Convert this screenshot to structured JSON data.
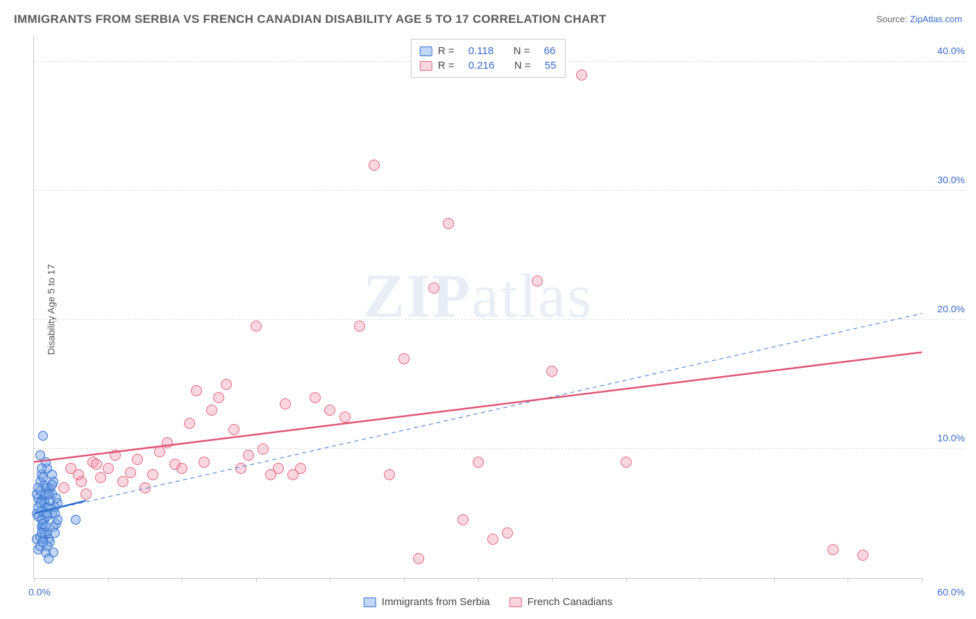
{
  "title": "IMMIGRANTS FROM SERBIA VS FRENCH CANADIAN DISABILITY AGE 5 TO 17 CORRELATION CHART",
  "source_prefix": "Source: ",
  "source_name": "ZipAtlas.com",
  "ylabel": "Disability Age 5 to 17",
  "watermark_bold": "ZIP",
  "watermark_rest": "atlas",
  "chart": {
    "type": "scatter",
    "xlim": [
      0,
      60
    ],
    "ylim": [
      0,
      42
    ],
    "x_min_label": "0.0%",
    "x_max_label": "60.0%",
    "x_tick_positions": [
      0,
      5,
      10,
      15,
      20,
      25,
      30,
      35,
      40,
      45,
      50,
      55,
      60
    ],
    "y_ticks": [
      {
        "v": 10,
        "label": "10.0%"
      },
      {
        "v": 20,
        "label": "20.0%"
      },
      {
        "v": 30,
        "label": "30.0%"
      },
      {
        "v": 40,
        "label": "40.0%"
      }
    ],
    "background_color": "#ffffff",
    "grid_color": "#dedede",
    "axis_color": "#c8c8c8",
    "tick_label_color": "#3868c8"
  },
  "series": [
    {
      "name": "Immigrants from Serbia",
      "legend_label": "Immigrants from Serbia",
      "r_value": "0.118",
      "n_value": "66",
      "marker_fill": "rgba(120,165,230,0.45)",
      "marker_stroke": "#2f6fd0",
      "marker_size": 14,
      "trend_solid": {
        "x1": 0,
        "y1": 5.0,
        "x2": 3.5,
        "y2": 6.0,
        "color": "#2f6fd0",
        "width": 2.5
      },
      "trend_dashed": {
        "x1": 0,
        "y1": 5.0,
        "x2": 60,
        "y2": 20.5,
        "color": "#5b89d6",
        "width": 1.2
      },
      "points": [
        [
          0.2,
          5.0
        ],
        [
          0.3,
          6.2
        ],
        [
          0.5,
          4.0
        ],
        [
          0.4,
          7.5
        ],
        [
          0.6,
          3.0
        ],
        [
          0.8,
          5.5
        ],
        [
          1.0,
          6.8
        ],
        [
          0.3,
          2.2
        ],
        [
          0.5,
          8.0
        ],
        [
          0.7,
          4.5
        ],
        [
          1.2,
          5.0
        ],
        [
          0.9,
          3.5
        ],
        [
          0.4,
          9.5
        ],
        [
          0.6,
          11.0
        ],
        [
          1.1,
          7.0
        ],
        [
          0.2,
          3.0
        ],
        [
          0.8,
          2.0
        ],
        [
          1.0,
          1.5
        ],
        [
          1.3,
          4.0
        ],
        [
          0.5,
          6.0
        ],
        [
          0.7,
          7.2
        ],
        [
          0.9,
          8.5
        ],
        [
          1.4,
          5.5
        ],
        [
          0.3,
          4.8
        ],
        [
          0.6,
          3.8
        ],
        [
          1.2,
          6.5
        ],
        [
          0.4,
          2.5
        ],
        [
          0.8,
          9.0
        ],
        [
          1.5,
          4.2
        ],
        [
          0.5,
          5.2
        ],
        [
          0.7,
          6.0
        ],
        [
          1.0,
          3.0
        ],
        [
          1.3,
          7.5
        ],
        [
          0.2,
          6.5
        ],
        [
          0.9,
          4.8
        ],
        [
          1.6,
          5.8
        ],
        [
          0.4,
          3.2
        ],
        [
          0.6,
          7.8
        ],
        [
          1.1,
          2.8
        ],
        [
          0.3,
          5.5
        ],
        [
          0.8,
          6.5
        ],
        [
          1.4,
          3.5
        ],
        [
          0.5,
          4.5
        ],
        [
          0.7,
          5.8
        ],
        [
          1.2,
          8.0
        ],
        [
          0.9,
          2.5
        ],
        [
          0.4,
          6.8
        ],
        [
          1.5,
          6.2
        ],
        [
          0.6,
          4.2
        ],
        [
          0.8,
          7.0
        ],
        [
          1.0,
          5.5
        ],
        [
          1.3,
          2.0
        ],
        [
          0.5,
          8.5
        ],
        [
          0.7,
          3.5
        ],
        [
          1.1,
          6.0
        ],
        [
          0.3,
          7.0
        ],
        [
          0.9,
          5.0
        ],
        [
          1.6,
          4.5
        ],
        [
          0.4,
          5.8
        ],
        [
          0.6,
          2.8
        ],
        [
          1.2,
          7.2
        ],
        [
          0.8,
          4.0
        ],
        [
          1.0,
          6.5
        ],
        [
          1.4,
          5.0
        ],
        [
          0.5,
          3.5
        ],
        [
          2.8,
          4.5
        ]
      ]
    },
    {
      "name": "French Canadians",
      "legend_label": "French Canadians",
      "r_value": "0.216",
      "n_value": "55",
      "marker_fill": "rgba(240,140,165,0.35)",
      "marker_stroke": "#e0657f",
      "marker_size": 16,
      "trend_solid": {
        "x1": 0,
        "y1": 9.0,
        "x2": 60,
        "y2": 17.5,
        "color": "#e05575",
        "width": 2.5
      },
      "trend_dashed": null,
      "points": [
        [
          3,
          8.0
        ],
        [
          4,
          9.0
        ],
        [
          5,
          8.5
        ],
        [
          6,
          7.5
        ],
        [
          7,
          9.2
        ],
        [
          8,
          8.0
        ],
        [
          9,
          10.5
        ],
        [
          10,
          8.5
        ],
        [
          11,
          14.5
        ],
        [
          12,
          13.0
        ],
        [
          13,
          15.0
        ],
        [
          14,
          8.5
        ],
        [
          15,
          19.5
        ],
        [
          16,
          8.0
        ],
        [
          17,
          13.5
        ],
        [
          18,
          8.5
        ],
        [
          19,
          14.0
        ],
        [
          20,
          13.0
        ],
        [
          21,
          12.5
        ],
        [
          22,
          19.5
        ],
        [
          23,
          32.0
        ],
        [
          24,
          8.0
        ],
        [
          25,
          17.0
        ],
        [
          26,
          1.5
        ],
        [
          27,
          22.5
        ],
        [
          28,
          27.5
        ],
        [
          29,
          4.5
        ],
        [
          30,
          9.0
        ],
        [
          31,
          3.0
        ],
        [
          32,
          3.5
        ],
        [
          34,
          23.0
        ],
        [
          35,
          16.0
        ],
        [
          37,
          39.0
        ],
        [
          40,
          9.0
        ],
        [
          54,
          2.2
        ],
        [
          56,
          1.8
        ],
        [
          2,
          7.0
        ],
        [
          3.5,
          6.5
        ],
        [
          4.5,
          7.8
        ],
        [
          5.5,
          9.5
        ],
        [
          6.5,
          8.2
        ],
        [
          7.5,
          7.0
        ],
        [
          8.5,
          9.8
        ],
        [
          9.5,
          8.8
        ],
        [
          10.5,
          12.0
        ],
        [
          11.5,
          9.0
        ],
        [
          12.5,
          14.0
        ],
        [
          13.5,
          11.5
        ],
        [
          14.5,
          9.5
        ],
        [
          15.5,
          10.0
        ],
        [
          16.5,
          8.5
        ],
        [
          17.5,
          8.0
        ],
        [
          2.5,
          8.5
        ],
        [
          3.2,
          7.5
        ],
        [
          4.2,
          8.8
        ]
      ]
    }
  ],
  "legend_top": {
    "r_label": "R  =",
    "n_label": "N  ="
  }
}
